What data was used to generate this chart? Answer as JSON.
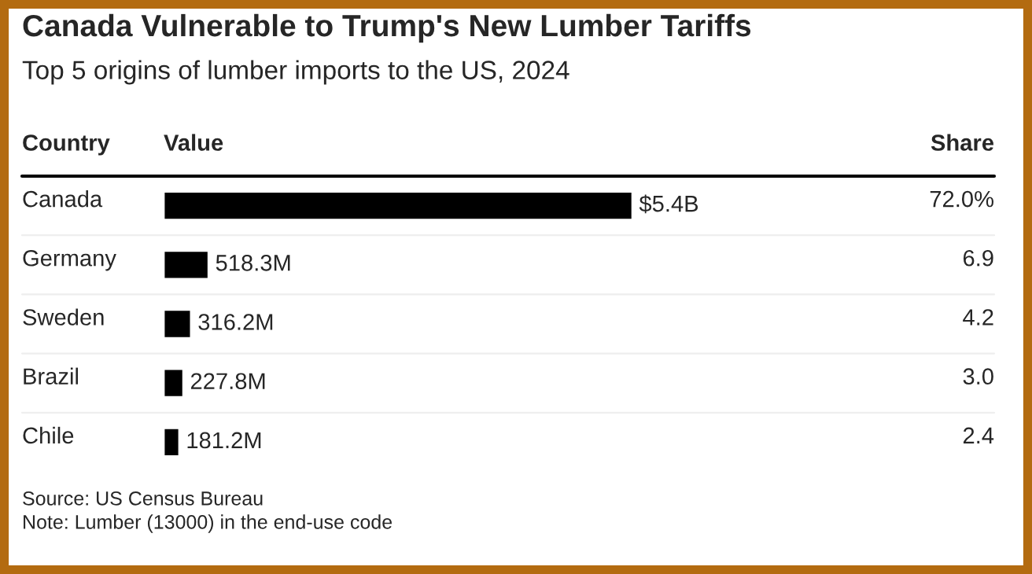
{
  "chart_data": {
    "type": "bar",
    "orientation": "horizontal",
    "title": "Canada Vulnerable to Trump's New Lumber Tariffs",
    "subtitle": "Top 5 origins of lumber imports to the US, 2024",
    "categories": [
      "Canada",
      "Germany",
      "Sweden",
      "Brazil",
      "Chile"
    ],
    "values": [
      5400000000,
      518300000,
      316200000,
      227800000,
      181200000
    ],
    "value_labels": [
      "$5.4B",
      "518.3M",
      "316.2M",
      "227.8M",
      "181.2M"
    ],
    "color": "#000000",
    "annotations": [
      "Country",
      "Value",
      "Share",
      "72.0%",
      "6.9",
      "4.2",
      "3.0",
      "2.4",
      "Source: US Census Bureau",
      "Note: Lumber (13000) in the end-use code"
    ]
  }
}
